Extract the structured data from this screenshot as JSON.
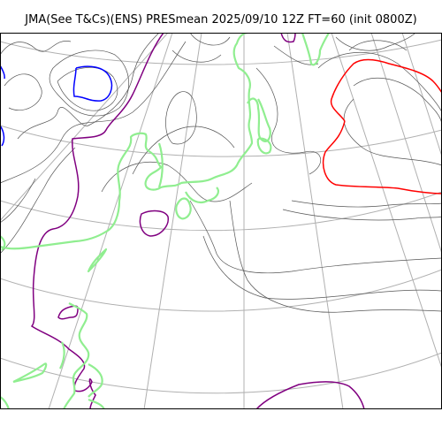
{
  "title": "JMA(See T&Cs)(ENS) PRESmean 2025/09/10 12Z FT=60 (init 0800Z)",
  "colors": {
    "background": "#ffffff",
    "isobar": "#555555",
    "graticule": "#b0b0b0",
    "coastline": "#90ee90",
    "contour_purple": "#800080",
    "contour_red": "#ff0000",
    "contour_blue": "#0000ff",
    "frame": "#000000"
  }
}
